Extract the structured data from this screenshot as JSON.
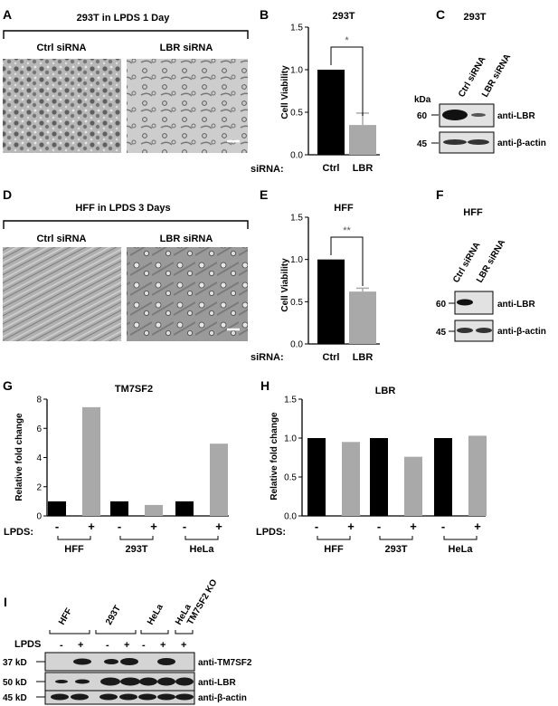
{
  "panels": {
    "A": {
      "letter": "A",
      "title": "293T in LPDS 1 Day",
      "left_label": "Ctrl siRNA",
      "right_label": "LBR siRNA"
    },
    "B": {
      "letter": "B",
      "title": "293T",
      "ylabel": "Cell Viability",
      "xprefix": "siRNA:",
      "significance": "*"
    },
    "C": {
      "letter": "C",
      "title": "293T",
      "kda": "kDa",
      "lane_labels": [
        "Ctrl siRNA",
        "LBR siRNA"
      ],
      "mw_top": "60",
      "mw_bottom": "45",
      "band_top": "anti-LBR",
      "band_bottom": "anti-β-actin"
    },
    "D": {
      "letter": "D",
      "title": "HFF in LPDS 3 Days",
      "left_label": "Ctrl siRNA",
      "right_label": "LBR siRNA"
    },
    "E": {
      "letter": "E",
      "title": "HFF",
      "ylabel": "Cell Viability",
      "xprefix": "siRNA:",
      "significance": "**"
    },
    "F": {
      "letter": "F",
      "title": "HFF",
      "lane_labels": [
        "Ctrl siRNA",
        "LBR siRNA"
      ],
      "mw_top": "60",
      "mw_bottom": "45",
      "band_top": "anti-LBR",
      "band_bottom": "anti-β-actin"
    },
    "G": {
      "letter": "G",
      "title": "TM7SF2",
      "ylabel": "Relative fold change",
      "lpds_label": "LPDS:",
      "minus": "-",
      "plus": "+"
    },
    "H": {
      "letter": "H",
      "title": "LBR",
      "ylabel": "Relative fold change",
      "lpds_label": "LPDS:",
      "minus": "-",
      "plus": "+"
    },
    "I": {
      "letter": "I",
      "lane_groups": [
        "HFF",
        "293T",
        "HeLa",
        "HeLa"
      ],
      "ko_label": "TM7SF2 KO",
      "lpds_label": "LPDS",
      "lane_signs": [
        "-",
        "+",
        "-",
        "+",
        "-",
        "+",
        "+"
      ],
      "mw": [
        "37 kD",
        "50 kD",
        "45 kD"
      ],
      "blots": [
        "anti-TM7SF2",
        "anti-LBR",
        "anti-β-actin"
      ]
    }
  },
  "chart_data": [
    {
      "panel": "B",
      "type": "bar",
      "title": "293T",
      "ylabel": "Cell Viability",
      "categories": [
        "Ctrl",
        "LBR"
      ],
      "values": [
        1.0,
        0.35
      ],
      "errors": [
        0,
        0.14
      ],
      "ylim": [
        0,
        1.5
      ],
      "yticks": [
        "0.0",
        "0.5",
        "1.0",
        "1.5"
      ],
      "colors": [
        "#000000",
        "#a9a9a9"
      ]
    },
    {
      "panel": "E",
      "type": "bar",
      "title": "HFF",
      "ylabel": "Cell Viability",
      "categories": [
        "Ctrl",
        "LBR"
      ],
      "values": [
        1.0,
        0.62
      ],
      "errors": [
        0,
        0.04
      ],
      "ylim": [
        0,
        1.5
      ],
      "yticks": [
        "0.0",
        "0.5",
        "1.0",
        "1.5"
      ],
      "colors": [
        "#000000",
        "#a9a9a9"
      ]
    },
    {
      "panel": "G",
      "type": "bar",
      "title": "TM7SF2",
      "ylabel": "Relative fold change",
      "categories": [
        "HFF",
        "293T",
        "HeLa"
      ],
      "series": [
        {
          "values": [
            1.0,
            1.0,
            1.0
          ],
          "color": "#000000"
        },
        {
          "values": [
            7.45,
            0.75,
            4.95
          ],
          "color": "#a9a9a9"
        }
      ],
      "ylim": [
        0,
        8
      ],
      "yticks": [
        "0",
        "2",
        "4",
        "6",
        "8"
      ]
    },
    {
      "panel": "H",
      "type": "bar",
      "title": "LBR",
      "ylabel": "Relative fold change",
      "categories": [
        "HFF",
        "293T",
        "HeLa"
      ],
      "series": [
        {
          "values": [
            1.0,
            1.0,
            1.0
          ],
          "color": "#000000"
        },
        {
          "values": [
            0.95,
            0.76,
            1.03
          ],
          "color": "#a9a9a9"
        }
      ],
      "ylim": [
        0,
        1.5
      ],
      "yticks": [
        "0.0",
        "0.5",
        "1.0",
        "1.5"
      ]
    }
  ]
}
